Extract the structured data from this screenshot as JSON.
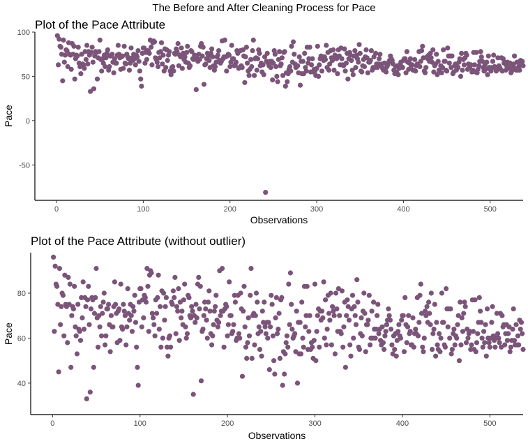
{
  "figure_title": "The Before and After Cleaning Process for Pace",
  "point_color": "#7b5479",
  "chart_data": [
    {
      "type": "scatter",
      "title": "Plot of the Pace Attribute",
      "xlabel": "Observations",
      "ylabel": "Pace",
      "xlim": [
        -25,
        538
      ],
      "ylim": [
        -90,
        100
      ],
      "xticks": [
        0,
        100,
        200,
        300,
        400,
        500
      ],
      "yticks": [
        -50,
        0,
        50,
        100
      ],
      "grid": false,
      "n_points": 513,
      "outlier": {
        "x": 241,
        "y": -81
      },
      "point_values_note": "same observations as the second chart plus the outlier at x=241"
    },
    {
      "type": "scatter",
      "title": "Plot of the Pace Attribute (without outlier)",
      "xlabel": "Observations",
      "ylabel": "Pace",
      "xlim": [
        -25,
        538
      ],
      "ylim": [
        26,
        98
      ],
      "xticks": [
        0,
        100,
        200,
        300,
        400,
        500
      ],
      "yticks": [
        40,
        60,
        80
      ],
      "grid": false,
      "n_points": 512,
      "y_values": [
        96,
        63,
        92,
        84,
        83,
        75,
        45,
        91,
        66,
        74,
        80,
        79,
        61,
        88,
        75,
        74,
        58,
        87,
        75,
        84,
        47,
        70,
        74,
        73,
        83,
        65,
        61,
        53,
        75,
        64,
        63,
        59,
        78,
        69,
        85,
        64,
        78,
        74,
        33,
        77,
        83,
        66,
        36,
        73,
        78,
        77,
        47,
        71,
        78,
        91,
        69,
        56,
        70,
        65,
        74,
        61,
        71,
        76,
        80,
        57,
        61,
        73,
        73,
        75,
        66,
        54,
        70,
        65,
        65,
        74,
        85,
        75,
        71,
        58,
        72,
        73,
        59,
        84,
        65,
        64,
        75,
        72,
        70,
        57,
        65,
        82,
        71,
        68,
        75,
        70,
        63,
        74,
        72,
        79,
        67,
        56,
        47,
        39,
        76,
        82,
        82,
        65,
        77,
        69,
        79,
        78,
        76,
        91,
        83,
        63,
        88,
        90,
        89,
        71,
        69,
        66,
        61,
        77,
        71,
        78,
        88,
        64,
        74,
        56,
        81,
        60,
        80,
        68,
        74,
        78,
        56,
        52,
        60,
        61,
        56,
        76,
        75,
        81,
        78,
        87,
        62,
        74,
        72,
        82,
        59,
        76,
        69,
        72,
        66,
        77,
        84,
        65,
        60,
        62,
        79,
        78,
        70,
        69,
        74,
        72,
        35,
        70,
        67,
        75,
        69,
        84,
        87,
        73,
        83,
        41,
        63,
        64,
        70,
        76,
        73,
        68,
        60,
        76,
        81,
        72,
        62,
        57,
        61,
        66,
        72,
        74,
        79,
        68,
        65,
        67,
        90,
        70,
        72,
        91,
        72,
        56,
        73,
        75,
        74,
        61,
        66,
        85,
        70,
        70,
        62,
        63,
        66,
        79,
        76,
        59,
        60,
        79,
        62,
        60,
        80,
        73,
        43,
        72,
        83,
        65,
        56,
        51,
        58,
        69,
        61,
        79,
        91,
        51,
        70,
        71,
        57,
        70,
        80,
        76,
        62,
        65,
        55,
        63,
        52,
        72,
        67,
        76,
        65,
        62,
        67,
        60,
        67,
        46,
        65,
        79,
        75,
        61,
        50,
        44,
        69,
        78,
        62,
        64,
        71,
        51,
        77,
        78,
        39,
        54,
        44,
        53,
        58,
        61,
        56,
        84,
        66,
        89,
        75,
        64,
        60,
        61,
        62,
        54,
        72,
        40,
        67,
        53,
        67,
        53,
        76,
        60,
        56,
        83,
        65,
        70,
        83,
        55,
        63,
        70,
        55,
        58,
        56,
        51,
        59,
        84,
        50,
        63,
        70,
        73,
        56,
        72,
        68,
        72,
        69,
        85,
        60,
        77,
        57,
        64,
        79,
        71,
        68,
        80,
        57,
        74,
        72,
        70,
        53,
        80,
        73,
        63,
        82,
        70,
        63,
        62,
        81,
        56,
        65,
        76,
        47,
        70,
        77,
        74,
        68,
        57,
        52,
        73,
        79,
        60,
        74,
        70,
        66,
        86,
        76,
        56,
        55,
        62,
        69,
        61,
        72,
        80,
        71,
        54,
        66,
        66,
        68,
        79,
        57,
        60,
        72,
        60,
        76,
        64,
        60,
        64,
        70,
        75,
        62,
        64,
        59,
        57,
        65,
        58,
        55,
        61,
        63,
        66,
        68,
        73,
        70,
        68,
        64,
        57,
        53,
        61,
        55,
        62,
        52,
        59,
        63,
        66,
        61,
        60,
        68,
        70,
        70,
        54,
        78,
        66,
        58,
        65,
        70,
        62,
        63,
        57,
        57,
        69,
        56,
        62,
        64,
        62,
        78,
        61,
        67,
        79,
        84,
        71,
        56,
        54,
        60,
        72,
        70,
        74,
        67,
        76,
        71,
        66,
        80,
        55,
        62,
        64,
        75,
        52,
        67,
        57,
        55,
        62,
        54,
        60,
        80,
        67,
        67,
        57,
        56,
        82,
        73,
        65,
        73,
        60,
        73,
        53,
        55,
        62,
        64,
        57,
        61,
        60,
        66,
        70,
        50,
        76,
        57,
        69,
        63,
        71,
        76,
        74,
        58,
        64,
        60,
        62,
        63,
        55,
        57,
        77,
        63,
        55,
        77,
        54,
        58,
        62,
        67,
        78,
        72,
        67,
        60,
        56,
        63,
        58,
        66,
        52,
        73,
        60,
        58,
        56,
        60,
        67,
        74,
        61,
        59,
        56,
        60,
        71,
        62,
        60,
        58,
        71,
        56,
        70,
        65,
        66,
        57,
        62,
        66,
        59,
        62,
        65,
        54,
        56,
        59,
        64,
        73,
        59,
        57,
        66,
        57,
        61,
        57,
        68,
        64,
        67,
        62,
        55,
        60,
        65,
        58,
        72,
        59,
        63,
        60,
        61,
        60
      ],
      "note": "y values listed per observation index 1..512 (approximate readings; rendered points are a faithful subset-pattern of the figure)"
    }
  ]
}
